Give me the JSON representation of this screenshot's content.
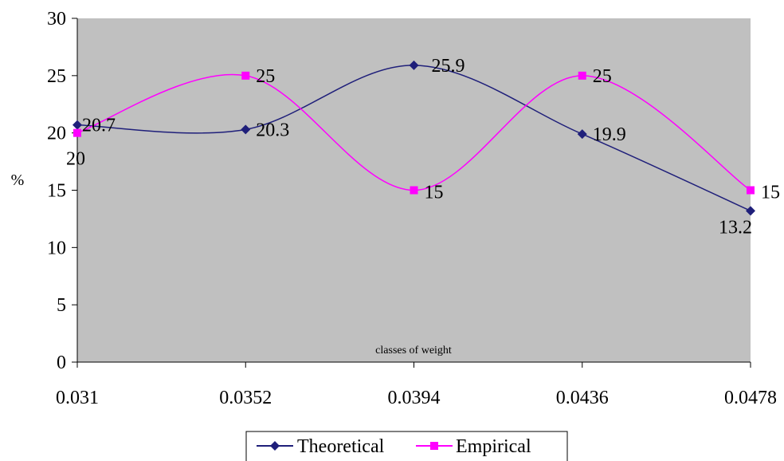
{
  "chart_data": {
    "type": "line",
    "smooth": true,
    "title": "",
    "xlabel": "classes of weight",
    "ylabel": "%",
    "categories": [
      "0.031",
      "0.0352",
      "0.0394",
      "0.0436",
      "0.0478"
    ],
    "ylim": [
      0,
      30
    ],
    "yticks": [
      "0",
      "5",
      "10",
      "15",
      "20",
      "25",
      "30"
    ],
    "grid": false,
    "plot_background": "#C0C0C0",
    "legend_position": "bottom",
    "series": [
      {
        "name": "Theoretical",
        "values": [
          20.7,
          20.3,
          25.9,
          19.9,
          13.2
        ],
        "labels": [
          "20.7",
          "20.3",
          "25.9",
          "19.9",
          "13.2"
        ],
        "color": "#1F1F7A",
        "marker": "diamond"
      },
      {
        "name": "Empirical",
        "values": [
          20,
          25,
          15,
          25,
          15
        ],
        "labels": [
          "20",
          "25",
          "15",
          "25",
          "15"
        ],
        "color": "#FF00FF",
        "marker": "square"
      }
    ]
  }
}
